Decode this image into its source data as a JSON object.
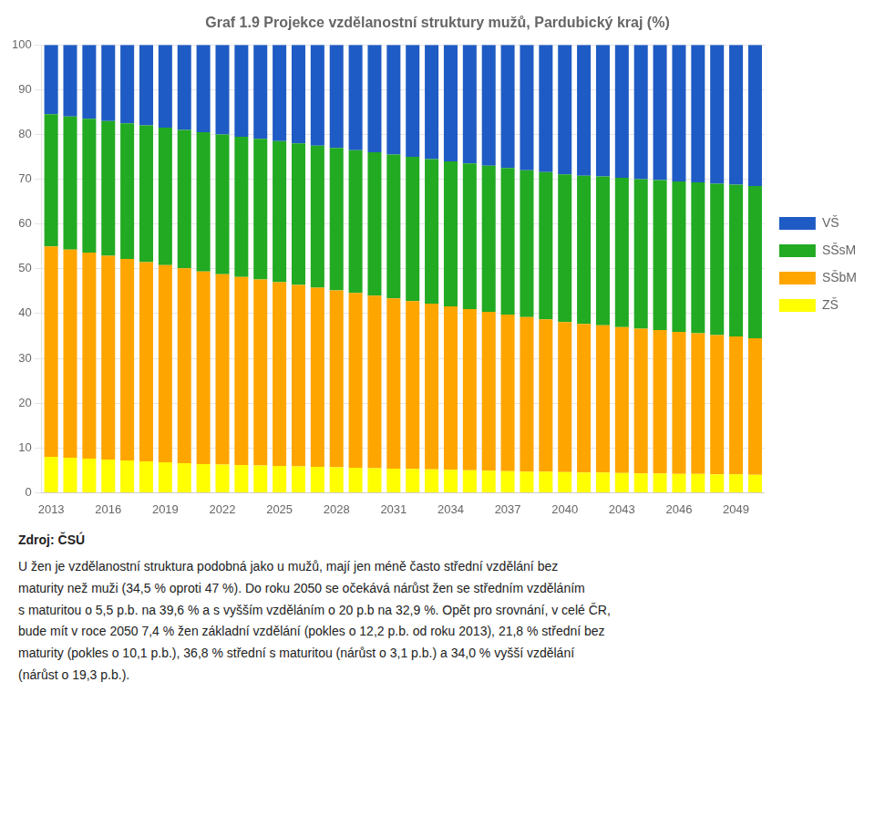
{
  "chart_data": {
    "type": "bar",
    "title": "Graf 1.9 Projekce vzdělanostní struktury mužů, Pardubický kraj (%)",
    "categories": [
      "2013",
      null,
      null,
      "2016",
      null,
      null,
      "2019",
      null,
      null,
      "2022",
      null,
      null,
      "2025",
      null,
      null,
      "2028",
      null,
      null,
      "2031",
      null,
      null,
      "2034",
      null,
      null,
      "2037",
      null,
      null,
      "2040",
      null,
      null,
      "2043",
      null,
      null,
      "2046",
      null,
      null,
      "2049",
      null
    ],
    "series": [
      {
        "name": "ZŠ",
        "color": "#FFFF00",
        "values": [
          8.0,
          7.8,
          7.6,
          7.4,
          7.2,
          7.0,
          6.8,
          6.6,
          6.4,
          6.3,
          6.2,
          6.1,
          6.0,
          5.9,
          5.8,
          5.7,
          5.6,
          5.5,
          5.4,
          5.3,
          5.2,
          5.1,
          5.0,
          4.9,
          4.8,
          4.7,
          4.7,
          4.6,
          4.5,
          4.5,
          4.4,
          4.3,
          4.3,
          4.2,
          4.2,
          4.1,
          4.1,
          4.0
        ]
      },
      {
        "name": "SŠbM",
        "color": "#FFA500",
        "values": [
          47.0,
          46.5,
          46.0,
          45.5,
          45.0,
          44.5,
          44.0,
          43.5,
          43.0,
          42.5,
          42.0,
          41.5,
          41.0,
          40.5,
          40.0,
          39.5,
          39.0,
          38.5,
          38.0,
          37.5,
          37.0,
          36.5,
          36.0,
          35.5,
          35.0,
          34.5,
          34.0,
          33.5,
          33.2,
          32.9,
          32.6,
          32.3,
          32.0,
          31.7,
          31.4,
          31.1,
          30.8,
          30.5
        ]
      },
      {
        "name": "SŠsM",
        "color": "#22AA22",
        "values": [
          29.5,
          29.7,
          29.9,
          30.1,
          30.3,
          30.5,
          30.7,
          30.9,
          31.1,
          31.2,
          31.3,
          31.4,
          31.5,
          31.6,
          31.7,
          31.8,
          31.9,
          32.0,
          32.1,
          32.2,
          32.3,
          32.4,
          32.5,
          32.6,
          32.7,
          32.8,
          32.9,
          33.0,
          33.1,
          33.2,
          33.3,
          33.4,
          33.5,
          33.6,
          33.7,
          33.8,
          33.9,
          34.0
        ]
      },
      {
        "name": "VŠ",
        "color": "#1F5BC4",
        "values": [
          15.5,
          16.0,
          16.5,
          17.0,
          17.5,
          18.0,
          18.5,
          19.0,
          19.5,
          20.0,
          20.5,
          21.0,
          21.5,
          22.0,
          22.5,
          23.0,
          23.5,
          24.0,
          24.5,
          25.0,
          25.5,
          26.0,
          26.5,
          27.0,
          27.5,
          28.0,
          28.4,
          28.9,
          29.2,
          29.4,
          29.7,
          30.0,
          30.2,
          30.5,
          30.7,
          31.0,
          31.2,
          31.5
        ]
      }
    ],
    "ylim": [
      0,
      100
    ],
    "yticks": [
      0,
      10,
      20,
      30,
      40,
      50,
      60,
      70,
      80,
      90,
      100
    ],
    "grid": true,
    "stacked": true,
    "legend": "right",
    "annotations": [
      "Zdroj: ČSÚ",
      "U žen je vzdělanostní struktura podobná jako u mužů, mají jen méně často střední vzdělání bez\nmaturity než muži (34,5 % oproti 47 %). Do roku 2050 se očekává nárůst žen se středním vzděláním\ns maturitou o 5,5 p.b. na 39,6 % a s vyšším vzděláním o 20 p.b na 32,9 %. Opět pro srovnání, v celé ČR,\nbude mít v roce 2050 7,4 % žen základní vzdělání (pokles o 12,2 p.b. od roku 2013), 21,8 % střední bez\nmaturity (pokles o 10,1 p.b.), 36,8 % střední s maturitou (nárůst o 3,1 p.b.) a 34,0 % vyšší vzdělání\n(nárůst o 19,3 p.b.)."
    ]
  }
}
